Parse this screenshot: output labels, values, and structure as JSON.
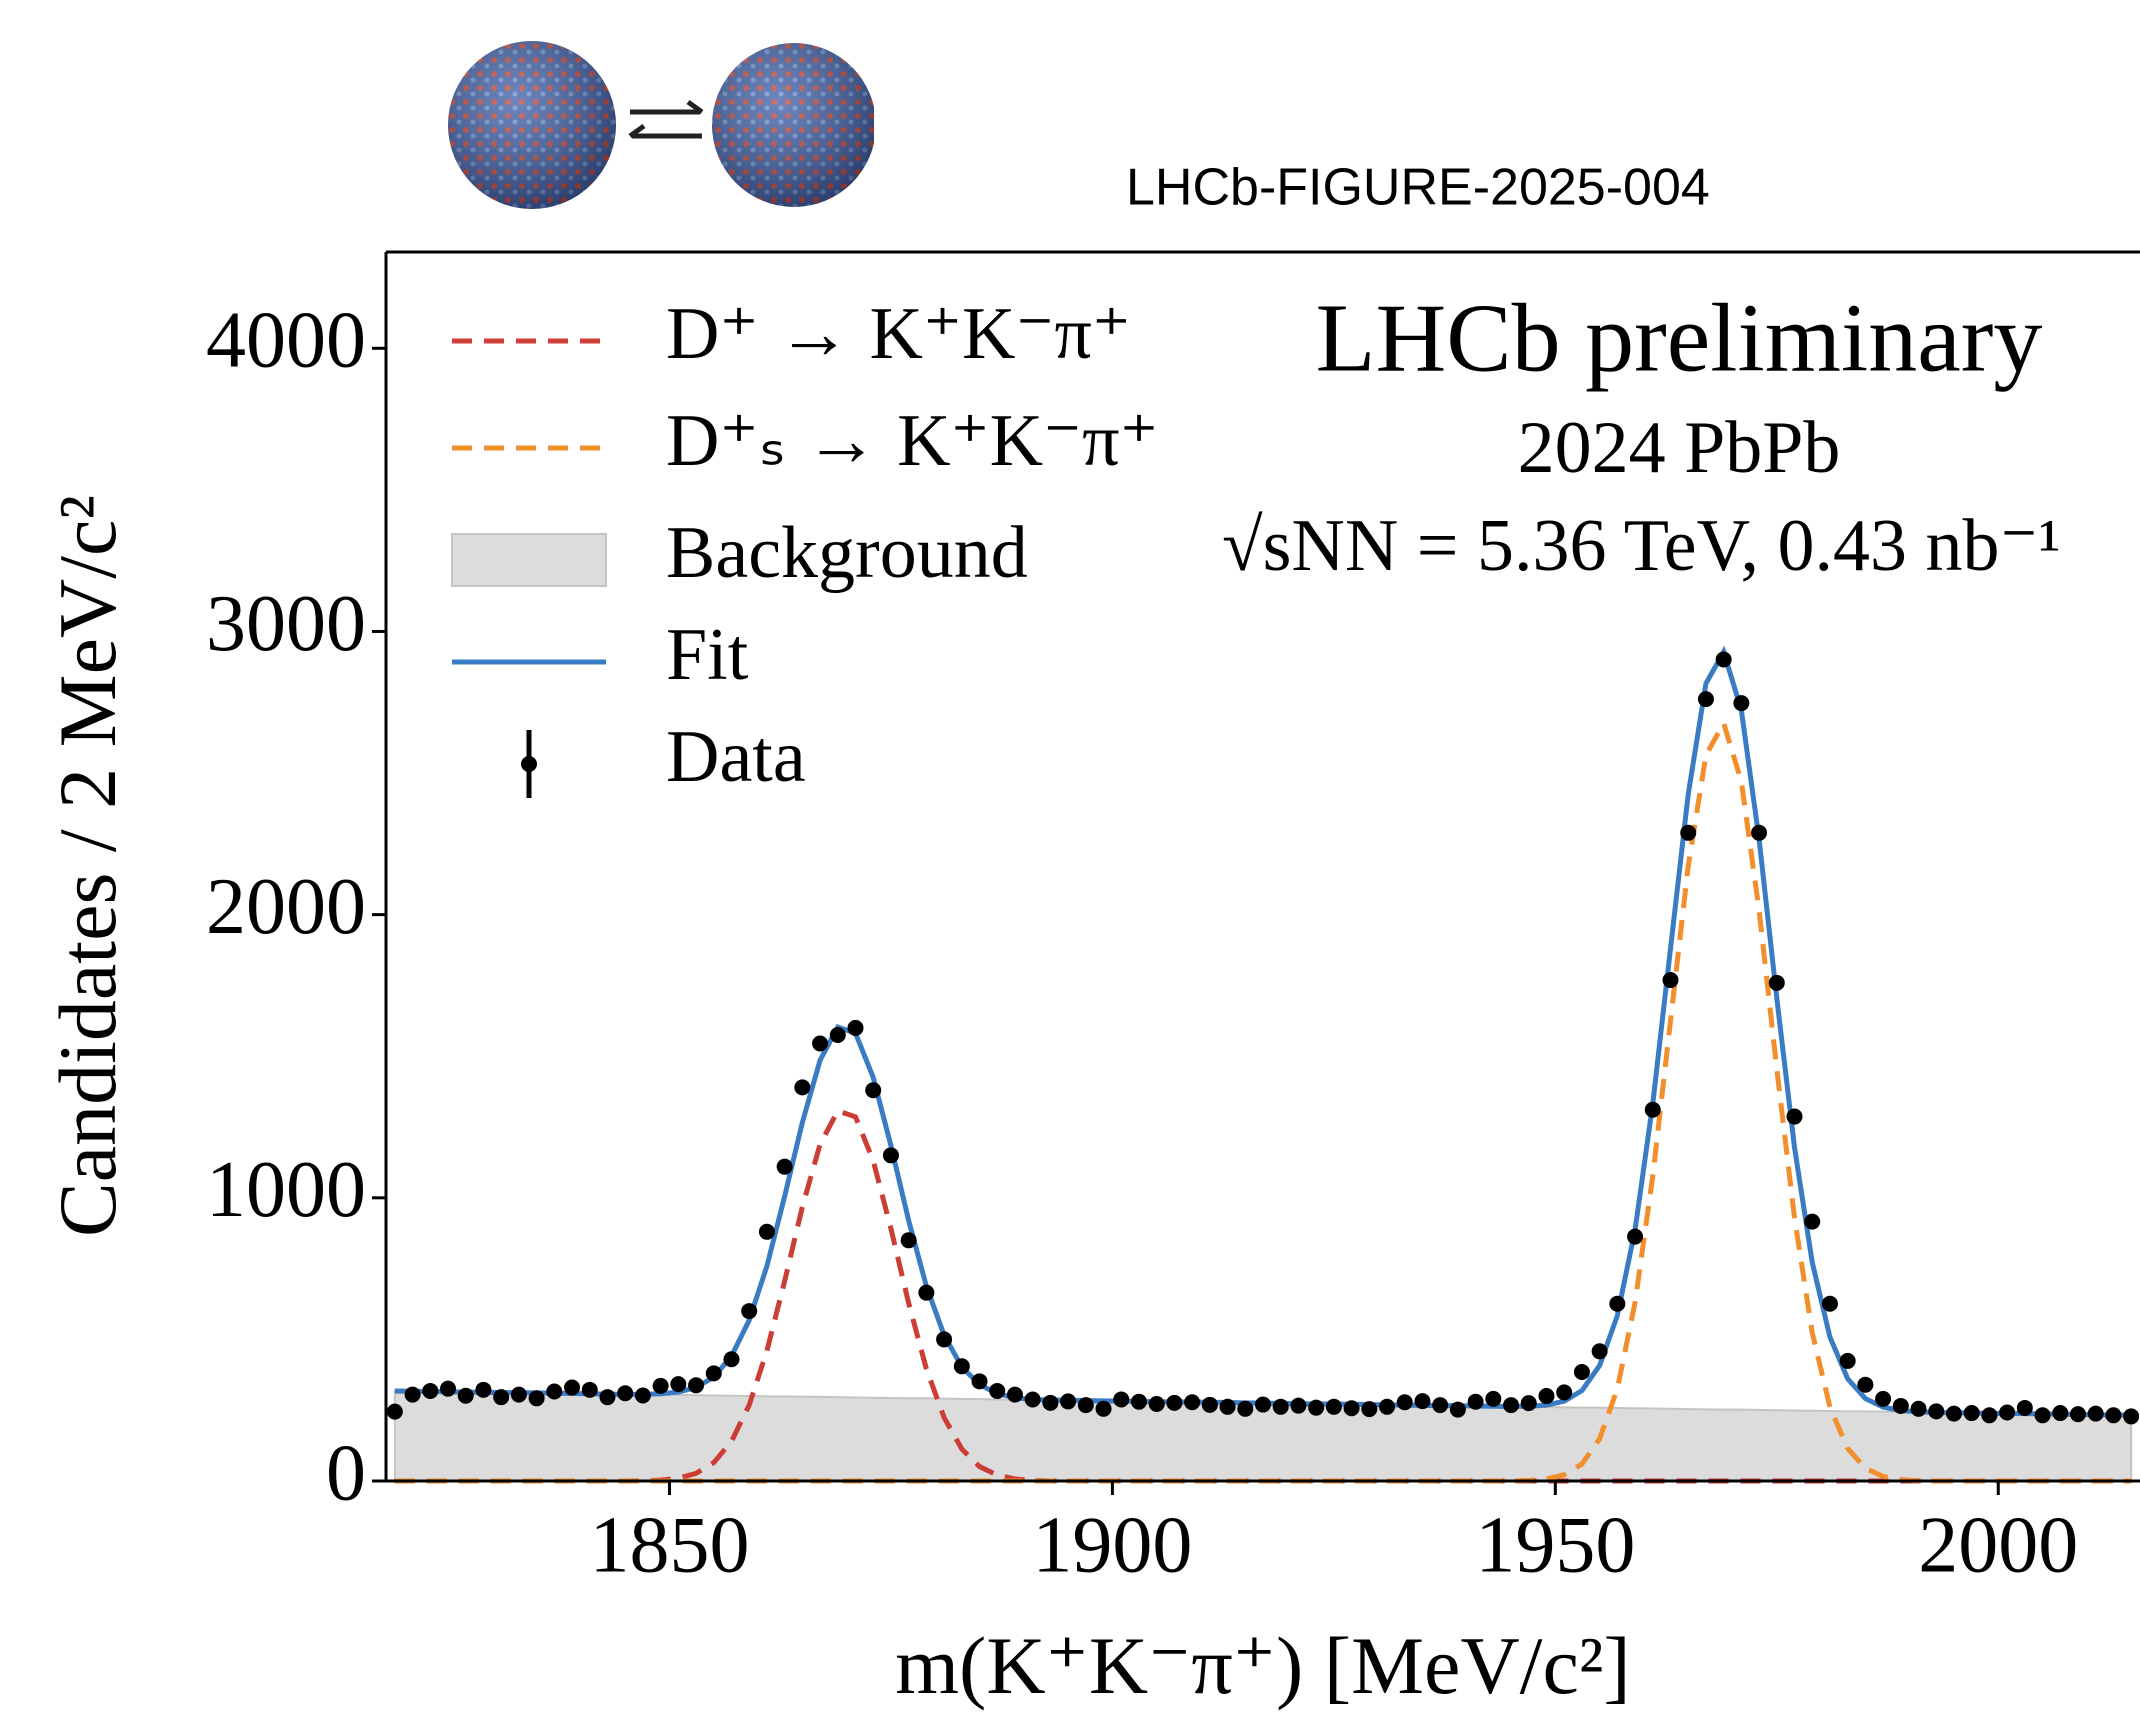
{
  "figure_id": "LHCb-FIGURE-2025-004",
  "chart_data": {
    "type": "line",
    "annotations": [
      "LHCb preliminary",
      "2024 PbPb",
      "√sNN = 5.36 TeV, 0.43 nb⁻¹"
    ],
    "x_label": "m(K⁺K⁻π⁺) [MeV/c²]",
    "y_label": "Candidates / 2 MeV/c²",
    "legend": "upper left",
    "xlim": [
      1818,
      2016
    ],
    "ylim": [
      0,
      4340
    ],
    "xticks": [
      1850,
      1900,
      1950,
      2000
    ],
    "yticks": [
      0,
      1000,
      2000,
      3000,
      4000
    ],
    "x": [
      1819,
      1821,
      1823,
      1825,
      1827,
      1829,
      1831,
      1833,
      1835,
      1837,
      1839,
      1841,
      1843,
      1845,
      1847,
      1849,
      1851,
      1853,
      1855,
      1857,
      1859,
      1861,
      1863,
      1865,
      1867,
      1869,
      1871,
      1873,
      1875,
      1877,
      1879,
      1881,
      1883,
      1885,
      1887,
      1889,
      1891,
      1893,
      1895,
      1897,
      1899,
      1901,
      1903,
      1905,
      1907,
      1909,
      1911,
      1913,
      1915,
      1917,
      1919,
      1921,
      1923,
      1925,
      1927,
      1929,
      1931,
      1933,
      1935,
      1937,
      1939,
      1941,
      1943,
      1945,
      1947,
      1949,
      1951,
      1953,
      1955,
      1957,
      1959,
      1961,
      1963,
      1965,
      1967,
      1969,
      1971,
      1973,
      1975,
      1977,
      1979,
      1981,
      1983,
      1985,
      1987,
      1989,
      1991,
      1993,
      1995,
      1997,
      1999,
      2001,
      2003,
      2005,
      2007,
      2009,
      2011,
      2013,
      2015
    ],
    "series": [
      {
        "name": "D⁺ → K⁺K⁻π⁺",
        "color": "#cc3d36",
        "style": "dashed",
        "values": [
          0,
          0,
          0,
          0,
          0,
          0,
          0,
          0,
          0,
          0,
          0,
          0,
          0,
          0,
          1,
          3,
          10,
          27,
          65,
          140,
          268,
          460,
          706,
          968,
          1189,
          1307,
          1286,
          1131,
          891,
          628,
          396,
          224,
          113,
          51,
          21,
          7,
          2,
          0,
          0,
          0,
          0,
          0,
          0,
          0,
          0,
          0,
          0,
          0,
          0,
          0,
          0,
          0,
          0,
          0,
          0,
          0,
          0,
          0,
          0,
          0,
          0,
          0,
          0,
          0,
          0,
          0,
          0,
          0,
          0,
          0,
          0,
          0,
          0,
          0,
          0,
          0,
          0,
          0,
          0,
          0,
          0,
          0,
          0,
          0,
          0,
          0,
          0,
          0,
          0,
          0,
          0,
          0,
          0,
          0,
          0,
          0,
          0,
          0,
          0
        ]
      },
      {
        "name": "D⁺ₛ → K⁺K⁻π⁺",
        "color": "#f28e2b",
        "style": "dashed",
        "values": [
          0,
          0,
          0,
          0,
          0,
          0,
          0,
          0,
          0,
          0,
          0,
          0,
          0,
          0,
          0,
          0,
          0,
          0,
          0,
          0,
          0,
          0,
          0,
          0,
          0,
          0,
          0,
          0,
          0,
          0,
          0,
          0,
          0,
          0,
          0,
          0,
          0,
          0,
          0,
          0,
          0,
          0,
          0,
          0,
          0,
          0,
          0,
          0,
          0,
          0,
          0,
          0,
          0,
          0,
          0,
          0,
          0,
          0,
          0,
          0,
          0,
          0,
          0,
          0,
          2,
          7,
          22,
          60,
          149,
          326,
          630,
          1077,
          1625,
          2171,
          2563,
          2676,
          2470,
          2016,
          1455,
          929,
          524,
          261,
          115,
          45,
          16,
          5,
          1,
          0,
          0,
          0,
          0,
          0,
          0,
          0,
          0,
          0,
          0,
          0,
          0
        ]
      },
      {
        "name": "Background",
        "color": "#dcdcdc",
        "style": "area",
        "values": [
          318,
          317,
          316,
          315,
          314,
          313,
          312,
          312,
          311,
          310,
          309,
          308,
          307,
          306,
          305,
          305,
          304,
          303,
          302,
          301,
          300,
          299,
          299,
          298,
          297,
          296,
          295,
          294,
          293,
          292,
          292,
          291,
          290,
          289,
          288,
          287,
          286,
          286,
          285,
          284,
          283,
          282,
          281,
          280,
          279,
          279,
          278,
          277,
          276,
          275,
          274,
          273,
          272,
          272,
          271,
          270,
          269,
          268,
          267,
          266,
          266,
          265,
          264,
          263,
          262,
          261,
          260,
          259,
          259,
          258,
          257,
          256,
          255,
          254,
          253,
          252,
          252,
          251,
          250,
          249,
          248,
          247,
          246,
          246,
          245,
          244,
          243,
          242,
          241,
          240,
          239,
          239,
          238,
          237,
          236,
          235,
          234,
          233,
          233
        ]
      },
      {
        "name": "Fit",
        "color": "#3a7cc3",
        "style": "line",
        "values": [
          318,
          317,
          316,
          315,
          314,
          313,
          312,
          312,
          311,
          310,
          309,
          308,
          307,
          306,
          306,
          308,
          314,
          330,
          367,
          441,
          568,
          759,
          1005,
          1266,
          1486,
          1603,
          1581,
          1425,
          1184,
          920,
          688,
          515,
          403,
          340,
          309,
          294,
          288,
          286,
          285,
          284,
          283,
          282,
          281,
          280,
          279,
          279,
          278,
          277,
          276,
          275,
          274,
          273,
          272,
          272,
          271,
          270,
          269,
          268,
          267,
          266,
          266,
          265,
          264,
          263,
          264,
          268,
          282,
          319,
          408,
          584,
          887,
          1333,
          1880,
          2425,
          2816,
          2928,
          2722,
          2267,
          1705,
          1178,
          772,
          508,
          361,
          291,
          261,
          249,
          244,
          242,
          241,
          240,
          239,
          239,
          238,
          237,
          236,
          235,
          234,
          233,
          233
        ]
      },
      {
        "name": "Data",
        "color": "#000000",
        "style": "points",
        "values": [
          245,
          305,
          318,
          326,
          301,
          322,
          296,
          305,
          292,
          316,
          330,
          322,
          296,
          310,
          302,
          336,
          342,
          338,
          380,
          430,
          600,
          880,
          1110,
          1390,
          1545,
          1575,
          1600,
          1380,
          1150,
          850,
          665,
          500,
          405,
          352,
          318,
          305,
          288,
          276,
          281,
          268,
          255,
          288,
          280,
          272,
          276,
          278,
          269,
          262,
          255,
          270,
          262,
          266,
          259,
          262,
          257,
          254,
          262,
          278,
          282,
          268,
          252,
          280,
          290,
          268,
          275,
          300,
          313,
          385,
          458,
          626,
          863,
          1311,
          1769,
          2289,
          2761,
          2901,
          2747,
          2289,
          1759,
          1287,
          916,
          626,
          424,
          340,
          290,
          265,
          255,
          246,
          238,
          240,
          232,
          242,
          258,
          232,
          240,
          236,
          238,
          232,
          228
        ]
      }
    ]
  }
}
